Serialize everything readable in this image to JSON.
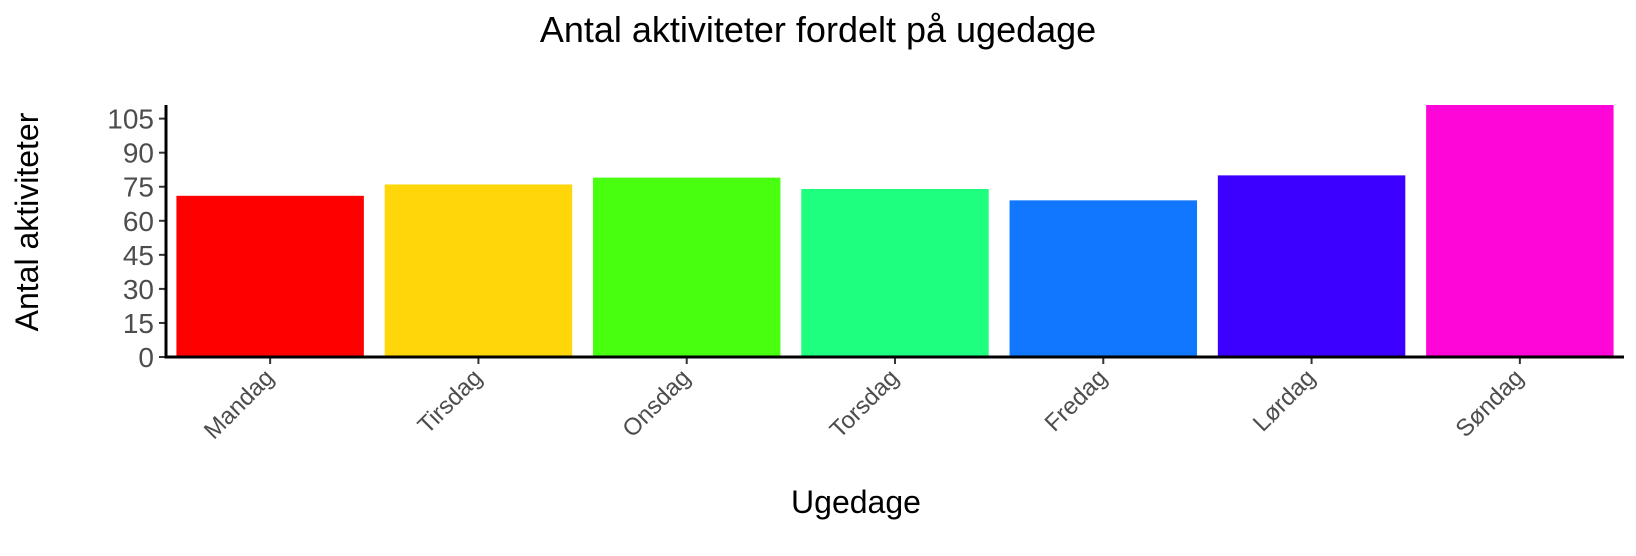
{
  "chart_data": {
    "type": "bar",
    "title": "Antal aktiviteter fordelt på ugedage",
    "xlabel": "Ugedage",
    "ylabel": "Antal aktiviteter",
    "categories": [
      "Mandag",
      "Tirsdag",
      "Onsdag",
      "Torsdag",
      "Fredag",
      "Lørdag",
      "Søndag"
    ],
    "values": [
      71,
      76,
      79,
      74,
      69,
      80,
      111
    ],
    "colors": [
      "#ff0000",
      "#ffd60a",
      "#48ff0f",
      "#1fff7f",
      "#1177ff",
      "#3b00ff",
      "#ff06d8"
    ],
    "yticks": [
      0,
      15,
      30,
      45,
      60,
      75,
      90,
      105
    ],
    "ylim": [
      0,
      111
    ],
    "grid": false,
    "legend": "none"
  }
}
